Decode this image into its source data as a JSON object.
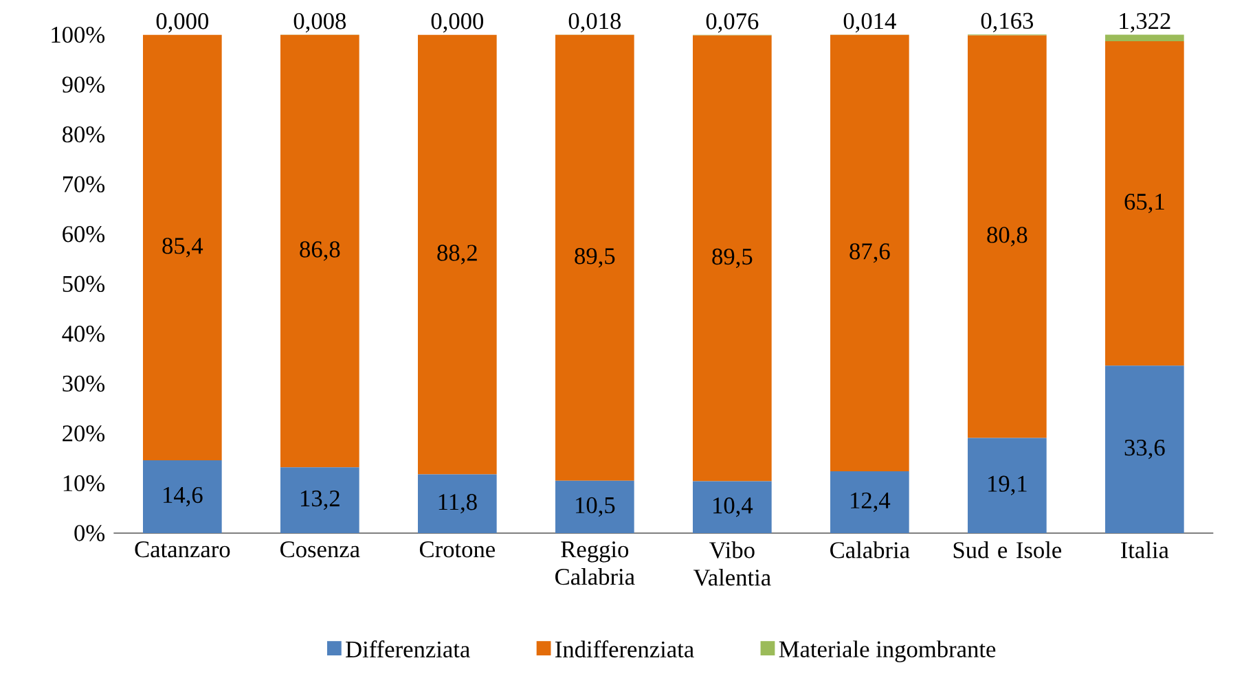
{
  "chart_data": {
    "type": "bar",
    "stacked": true,
    "categories": [
      "Catanzaro",
      "Cosenza",
      "Crotone",
      "Reggio Calabria",
      "Vibo Valentia",
      "Calabria",
      "Sud e Isole",
      "Italia"
    ],
    "series": [
      {
        "name": "Differenziata",
        "color": "#4f81bd",
        "values": [
          14.6,
          13.2,
          11.8,
          10.5,
          10.4,
          12.4,
          19.1,
          33.6
        ],
        "value_labels": [
          "14,6",
          "13,2",
          "11,8",
          "10,5",
          "10,4",
          "12,4",
          "19,1",
          "33,6"
        ]
      },
      {
        "name": "Indifferenziata",
        "color": "#e36c09",
        "values": [
          85.4,
          86.8,
          88.2,
          89.5,
          89.5,
          87.6,
          80.8,
          65.1
        ],
        "value_labels": [
          "85,4",
          "86,8",
          "88,2",
          "89,5",
          "89,5",
          "87,6",
          "80,8",
          "65,1"
        ]
      },
      {
        "name": "Materiale ingombrante",
        "color": "#9bbb59",
        "values": [
          0.0,
          0.008,
          0.0,
          0.018,
          0.076,
          0.014,
          0.163,
          1.322
        ],
        "value_labels": [
          "0,000",
          "0,008",
          "0,000",
          "0,018",
          "0,076",
          "0,014",
          "0,163",
          "1,322"
        ]
      }
    ],
    "ylim": [
      0,
      100
    ],
    "yticks": [
      {
        "value": 0,
        "label": "0%"
      },
      {
        "value": 10,
        "label": "10%"
      },
      {
        "value": 20,
        "label": "20%"
      },
      {
        "value": 30,
        "label": "30%"
      },
      {
        "value": 40,
        "label": "40%"
      },
      {
        "value": 50,
        "label": "50%"
      },
      {
        "value": 60,
        "label": "60%"
      },
      {
        "value": 70,
        "label": "70%"
      },
      {
        "value": 80,
        "label": "80%"
      },
      {
        "value": 90,
        "label": "90%"
      },
      {
        "value": 100,
        "label": "100%"
      }
    ],
    "legend": "bottom"
  }
}
